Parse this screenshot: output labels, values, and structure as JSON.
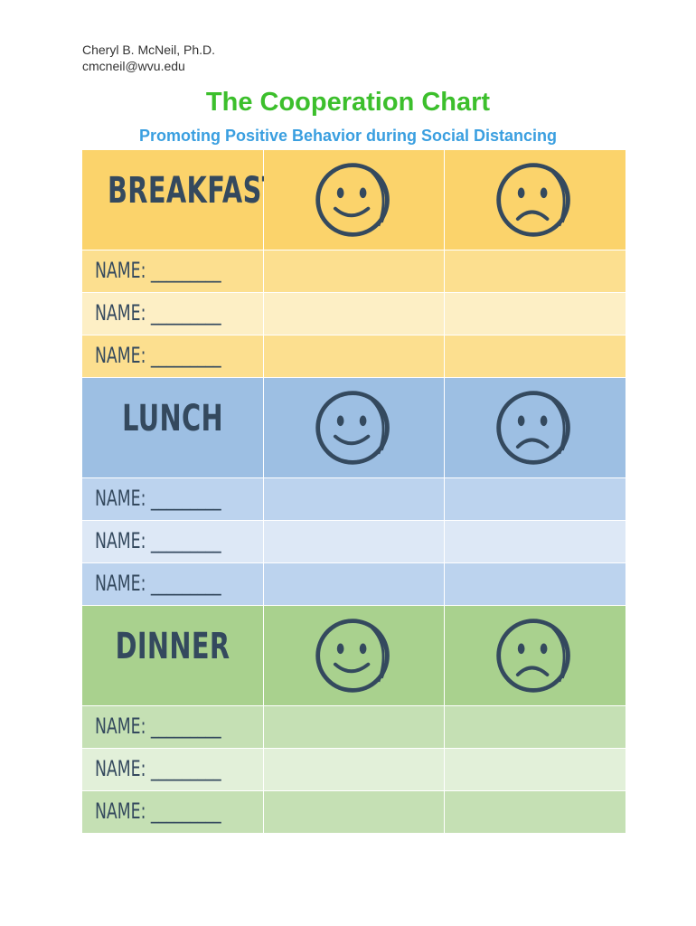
{
  "header": {
    "author_name": "Cheryl B. McNeil, Ph.D.",
    "author_email": "cmcneil@wvu.edu",
    "title": "The Cooperation Chart",
    "subtitle": "Promoting Positive Behavior during Social Distancing"
  },
  "colors": {
    "title": "#3cbf2c",
    "subtitle": "#3a9fe0",
    "ink": "#34495e",
    "breakfast": "#fbd36b",
    "lunch": "#9dbfe3",
    "dinner": "#a9d18e"
  },
  "icons": {
    "happy": "happy-face-icon",
    "sad": "sad-face-icon"
  },
  "sections": {
    "breakfast": {
      "label": "BREAKFAST",
      "names": [
        "NAME: _________",
        "NAME: _________",
        "NAME: _________"
      ]
    },
    "lunch": {
      "label": "LUNCH",
      "names": [
        "NAME: _________",
        "NAME: _________",
        "NAME: _________"
      ]
    },
    "dinner": {
      "label": "DINNER",
      "names": [
        "NAME: _________",
        "NAME: _________",
        "NAME: _________"
      ]
    }
  }
}
